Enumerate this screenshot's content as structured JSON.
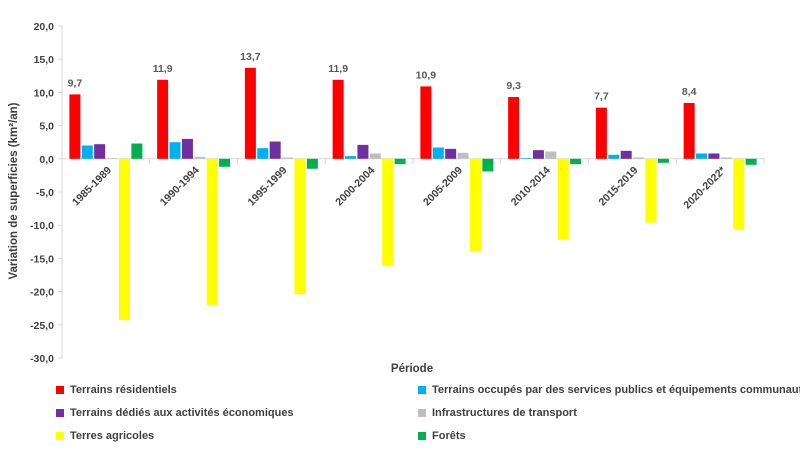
{
  "chart_data": {
    "type": "bar",
    "categories": [
      "1985-1989",
      "1990-1994",
      "1995-1999",
      "2000-2004",
      "2005-2009",
      "2010-2014",
      "2015-2019",
      "2020-2022*"
    ],
    "series": [
      {
        "name": "Terrains résidentiels",
        "color": "#ff0000",
        "values": [
          9.7,
          11.9,
          13.7,
          11.9,
          10.9,
          9.3,
          7.7,
          8.4
        ],
        "labels": [
          "9,7",
          "11,9",
          "13,7",
          "11,9",
          "10,9",
          "9,3",
          "7,7",
          "8,4"
        ]
      },
      {
        "name": "Terrains occupés par des services publics et équipements communautaires",
        "color": "#00b0f0",
        "values": [
          2.0,
          2.5,
          1.6,
          0.4,
          1.7,
          0.1,
          0.6,
          0.8
        ]
      },
      {
        "name": "Terrains dédiés aux activités économiques",
        "color": "#7030a0",
        "values": [
          2.2,
          3.0,
          2.6,
          2.1,
          1.5,
          1.3,
          1.2,
          0.8
        ]
      },
      {
        "name": "Infrastructures de transport",
        "color": "#bfbfbf",
        "values": [
          0.1,
          0.3,
          0.2,
          0.8,
          0.9,
          1.1,
          0.2,
          0.2
        ]
      },
      {
        "name": "Terres agricoles",
        "color": "#ffff00",
        "values": [
          -24.3,
          -22.0,
          -20.4,
          -16.1,
          -13.9,
          -12.2,
          -9.6,
          -10.6
        ]
      },
      {
        "name": "Forêts",
        "color": "#00b050",
        "values": [
          2.3,
          -1.2,
          -1.5,
          -0.8,
          -1.9,
          -0.8,
          -0.6,
          -0.9
        ]
      }
    ],
    "ylabel": "Variation de superficies (km²/an)",
    "xlabel": "Période",
    "ylim": [
      -30,
      20
    ],
    "yticks": [
      20,
      15,
      10,
      5,
      0,
      -5,
      -10,
      -15,
      -20,
      -25,
      -30
    ],
    "ytick_labels": [
      "20,0",
      "15,0",
      "10,0",
      "5,0",
      "0,0",
      "-5,0",
      "-10,0",
      "-15,0",
      "-20,0",
      "-25,0",
      "-30,0"
    ],
    "grid": false,
    "legend_position": "bottom"
  }
}
